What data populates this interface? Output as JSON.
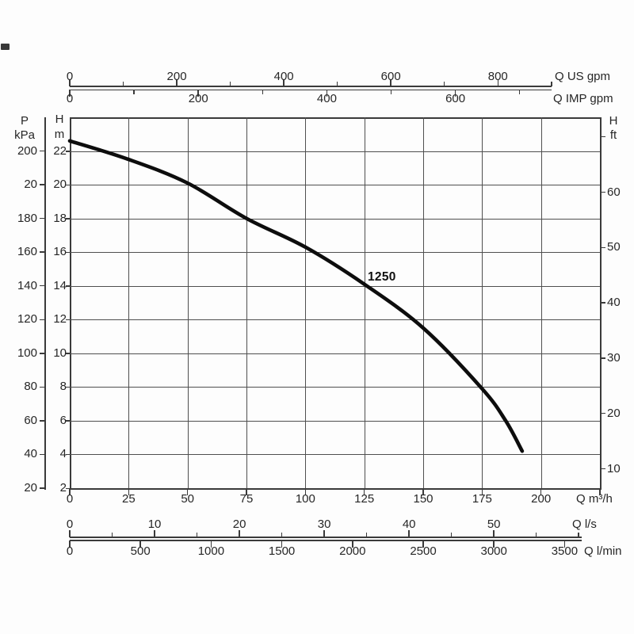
{
  "page": {
    "background": "#fdfdfd"
  },
  "colors": {
    "ink": "#262626",
    "grid": "#4f4f4f",
    "border": "#3a3a3a",
    "curve": "#0d0d0d",
    "background": "#fdfdfd"
  },
  "chart_data": {
    "type": "line",
    "title": "",
    "curve_label": "1250",
    "grid": true,
    "series": [
      {
        "name": "1250",
        "Q_m3h": [
          0,
          25,
          50,
          75,
          100,
          125,
          150,
          175,
          185,
          192
        ],
        "H_m": [
          22.6,
          21.5,
          20.1,
          18.0,
          16.3,
          14.1,
          11.5,
          7.9,
          6.0,
          4.2
        ]
      }
    ],
    "axes": {
      "x_m3h": {
        "unit_label": "Q m³/h",
        "tick_values": [
          0,
          25,
          50,
          75,
          100,
          125,
          150,
          175,
          200
        ],
        "edge_tick_value": 225,
        "range": [
          0,
          225
        ]
      },
      "x_us_gpm": {
        "unit_label": "Q US gpm",
        "tick_values": [
          0,
          200,
          400,
          600,
          800
        ],
        "minor_tick_values": [
          100,
          300,
          500,
          700,
          900
        ]
      },
      "x_imp_gpm": {
        "unit_label": "Q IMP gpm",
        "tick_values": [
          0,
          200,
          400,
          600
        ],
        "minor_tick_values": [
          100,
          300,
          500,
          700
        ]
      },
      "x_ls": {
        "unit_label": "Q l/s",
        "tick_values": [
          0,
          10,
          20,
          30,
          40,
          50
        ],
        "minor_tick_values": [
          5,
          15,
          25,
          35,
          45,
          55,
          60
        ]
      },
      "x_lmin": {
        "unit_label": "Q l/min",
        "tick_values": [
          0,
          500,
          1000,
          1500,
          2000,
          2500,
          3000,
          3500
        ]
      },
      "y_m": {
        "quantity_label": "H",
        "unit_label": "m",
        "tick_values": [
          2,
          4,
          6,
          8,
          10,
          12,
          14,
          16,
          18,
          20,
          22
        ],
        "range": [
          2,
          24
        ]
      },
      "y_kpa": {
        "quantity_label": "P",
        "unit_label": "kPa",
        "tick_labels": [
          "200",
          "20",
          "180",
          "160",
          "140",
          "120",
          "100",
          "80",
          "60",
          "40",
          "20"
        ]
      },
      "y_ft": {
        "quantity_label": "H",
        "unit_label": "ft",
        "tick_values": [
          10,
          20,
          30,
          40,
          50,
          60
        ],
        "unlabeled_tick_values": [
          70
        ]
      }
    }
  }
}
